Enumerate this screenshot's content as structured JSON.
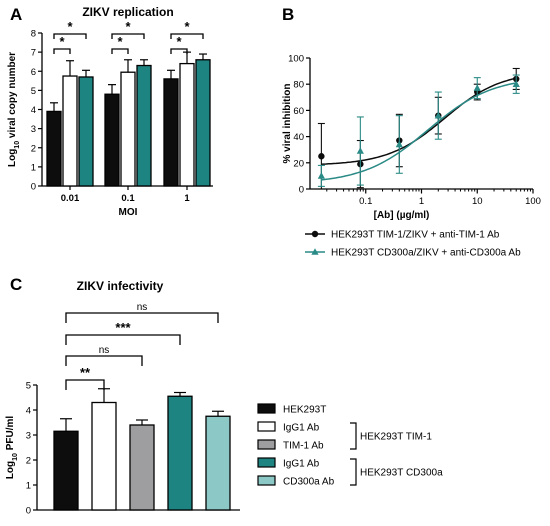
{
  "colors": {
    "black": "#0d0d0d",
    "white": "#ffffff",
    "grey": "#9e9ea0",
    "teal": "#1e8482",
    "lightteal": "#8cc8c5",
    "tealLine": "#2a8a86"
  },
  "panels": {
    "a": "A",
    "b": "B",
    "c": "C"
  },
  "chart_data": [
    {
      "type": "bar",
      "title": "ZIKV replication",
      "xlabel": "MOI",
      "ylabel": "Log10 viral copy number",
      "ylabel_main": "Log",
      "ylabel_sub": "10",
      "ylabel_rest": " viral copy number",
      "ylim": [
        0,
        8
      ],
      "yticks": [
        "0",
        "1",
        "2",
        "3",
        "4",
        "5",
        "6",
        "7",
        "8"
      ],
      "categories": [
        "0.01",
        "0.1",
        "1"
      ],
      "series": [
        {
          "color": "black",
          "values": [
            3.9,
            4.8,
            5.6
          ],
          "errors": [
            0.45,
            0.5,
            0.45
          ]
        },
        {
          "color": "white",
          "values": [
            5.75,
            5.95,
            6.4
          ],
          "errors": [
            0.8,
            0.65,
            0.6
          ]
        },
        {
          "color": "teal",
          "values": [
            5.7,
            6.3,
            6.6
          ],
          "errors": [
            0.35,
            0.3,
            0.3
          ]
        }
      ],
      "significance": [
        {
          "group": 0,
          "from": 0,
          "to": 1,
          "label": "*",
          "level": "lower"
        },
        {
          "group": 0,
          "from": 0,
          "to": 2,
          "label": "*",
          "level": "upper"
        },
        {
          "group": 1,
          "from": 0,
          "to": 1,
          "label": "*",
          "level": "lower"
        },
        {
          "group": 1,
          "from": 0,
          "to": 2,
          "label": "*",
          "level": "upper"
        },
        {
          "group": 2,
          "from": 0,
          "to": 1,
          "label": "*",
          "level": "lower"
        },
        {
          "group": 2,
          "from": 0,
          "to": 2,
          "label": "*",
          "level": "upper"
        }
      ]
    },
    {
      "type": "line",
      "xlabel": "[Ab] (µg/ml)",
      "ylabel": "% viral inhibition",
      "xscale": "log",
      "xlim": [
        0.01,
        100
      ],
      "ylim": [
        0,
        100
      ],
      "xticks": [
        {
          "v": 0.1,
          "label": "0.1"
        },
        {
          "v": 1,
          "label": "1"
        },
        {
          "v": 10,
          "label": "10"
        },
        {
          "v": 100,
          "label": "100"
        }
      ],
      "yticks": [
        "0",
        "20",
        "40",
        "60",
        "80",
        "100"
      ],
      "legend_position": "bottom",
      "series": [
        {
          "name": "HEK293T TIM-1/ZIKV + anti-TIM-1 Ab",
          "color": "black",
          "marker": "circle",
          "x": [
            0.016,
            0.08,
            0.4,
            2,
            10,
            50
          ],
          "y": [
            25,
            19,
            37,
            56,
            74,
            84
          ],
          "err": [
            25,
            18,
            20,
            14,
            6,
            8
          ],
          "fit": {
            "bottom": 18,
            "top": 90,
            "ec50": 2.6,
            "hill": 0.85
          }
        },
        {
          "name": "HEK293T CD300a/ZIKV + anti-CD300a Ab",
          "color": "tealLine",
          "marker": "triangle",
          "x": [
            0.016,
            0.08,
            0.4,
            2,
            10,
            50
          ],
          "y": [
            10,
            29,
            34,
            56,
            77,
            80
          ],
          "err": [
            8,
            26,
            22,
            18,
            8,
            7
          ],
          "fit": {
            "bottom": 4,
            "top": 86,
            "ec50": 1.3,
            "hill": 0.75
          }
        }
      ]
    },
    {
      "type": "bar",
      "title": "ZIKV infectivity",
      "ylabel": "Log10 PFU/ml",
      "ylabel_main": "Log",
      "ylabel_sub": "10",
      "ylabel_rest": " PFU/ml",
      "ylim": [
        0,
        5
      ],
      "yticks": [
        "0",
        "1",
        "2",
        "3",
        "4",
        "5"
      ],
      "categories": [
        "HEK293T",
        "IgG1 Ab",
        "TIM-1 Ab",
        "IgG1 Ab",
        "CD300a Ab"
      ],
      "values": [
        3.15,
        4.3,
        3.4,
        4.55,
        3.75
      ],
      "errors": [
        0.5,
        0.55,
        0.2,
        0.15,
        0.2
      ],
      "bar_colors": [
        "black",
        "white",
        "grey",
        "teal",
        "lightteal"
      ],
      "legend_position": "right",
      "legend": [
        {
          "label": "HEK293T",
          "color": "black"
        },
        {
          "label": "IgG1 Ab",
          "color": "white"
        },
        {
          "label": "TIM-1 Ab",
          "color": "grey"
        },
        {
          "label": "IgG1 Ab",
          "color": "teal"
        },
        {
          "label": "CD300a Ab",
          "color": "lightteal"
        }
      ],
      "groups": [
        {
          "label": "HEK293T TIM-1",
          "members": [
            1,
            2
          ]
        },
        {
          "label": "HEK293T CD300a",
          "members": [
            3,
            4
          ]
        }
      ],
      "significance": [
        {
          "from": 0,
          "to": 1,
          "label": "**"
        },
        {
          "from": 0,
          "to": 2,
          "label": "ns"
        },
        {
          "from": 0,
          "to": 3,
          "label": "***"
        },
        {
          "from": 0,
          "to": 4,
          "label": "ns"
        }
      ]
    }
  ]
}
